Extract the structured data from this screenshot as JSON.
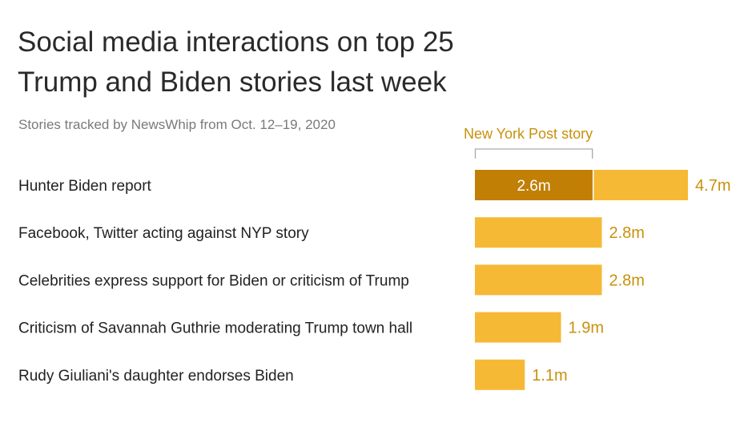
{
  "title_line1": "Social media interactions on top 25",
  "title_line2": "Trump and Biden stories last week",
  "subtitle": "Stories tracked by NewsWhip from Oct. 12–19, 2020",
  "colors": {
    "bar": "#f6b935",
    "highlight": "#c17f06",
    "label": "#c9900c",
    "text": "#222222"
  },
  "chart_data": {
    "type": "bar",
    "orientation": "horizontal",
    "title": "Social media interactions on top 25 Trump and Biden stories last week",
    "subtitle": "Stories tracked by NewsWhip from Oct. 12–19, 2020",
    "xlabel": "",
    "ylabel": "",
    "xlim": [
      0,
      4.7
    ],
    "categories": [
      "Hunter Biden report",
      "Facebook, Twitter acting against NYP story",
      "Celebrities express support for Biden or criticism of Trump",
      "Criticism of Savannah Guthrie moderating Trump town hall",
      "Rudy Giuliani's daughter endorses Biden"
    ],
    "values": [
      4.7,
      2.8,
      2.8,
      1.9,
      1.1
    ],
    "value_labels": [
      "4.7m",
      "2.8m",
      "2.8m",
      "1.9m",
      "1.1m"
    ],
    "highlight": {
      "category_index": 0,
      "value": 2.6,
      "label": "2.6m",
      "annotation": "New York Post story"
    },
    "grid": false,
    "legend": "none"
  }
}
